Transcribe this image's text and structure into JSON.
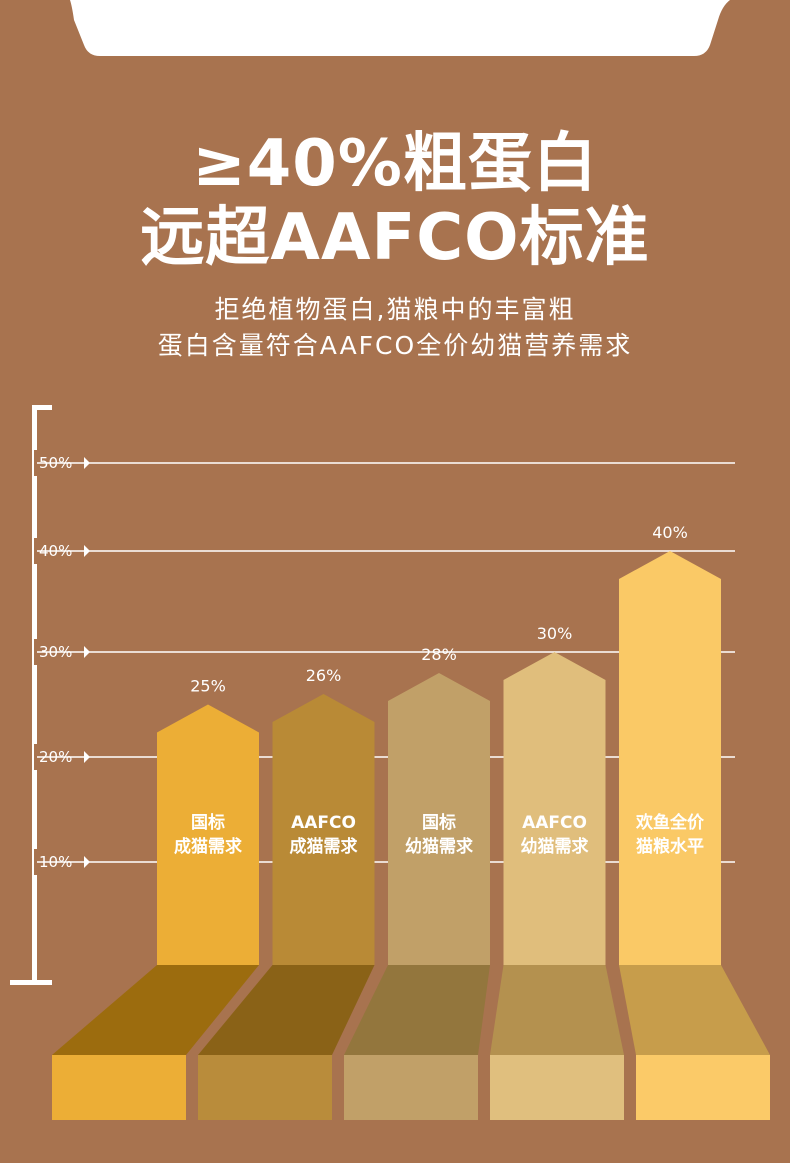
{
  "header": {
    "title_line1": "≥40%粗蛋白",
    "title_line2": "远超AAFCO标准",
    "subtitle_line1": "拒绝植物蛋白,猫粮中的丰富粗",
    "subtitle_line2": "蛋白含量符合AAFCO全价幼猫营养需求"
  },
  "colors": {
    "background": "#a8734f",
    "gridline": "#ffffff"
  },
  "chart_data": {
    "type": "bar",
    "y_ticks": [
      "10%",
      "20%",
      "30%",
      "40%",
      "50%"
    ],
    "ylim": [
      0,
      50
    ],
    "grid": true,
    "bars": [
      {
        "label_lines": [
          "国标",
          "成猫需求"
        ],
        "value": 25,
        "value_label": "25%",
        "color": "#ecae36",
        "side_color": "#9c6c0e",
        "front_color": "#ecae36"
      },
      {
        "label_lines": [
          "AAFCO",
          "成猫需求"
        ],
        "value": 26,
        "value_label": "26%",
        "color": "#b98a36",
        "side_color": "#8a6217",
        "front_color": "#b98c3b"
      },
      {
        "label_lines": [
          "国标",
          "幼猫需求"
        ],
        "value": 28,
        "value_label": "28%",
        "color": "#c1a068",
        "side_color": "#93763d",
        "front_color": "#c1a068"
      },
      {
        "label_lines": [
          "AAFCO",
          "幼猫需求"
        ],
        "value": 30,
        "value_label": "30%",
        "color": "#e0be7c",
        "side_color": "#b4914f",
        "front_color": "#e0bf7e"
      },
      {
        "label_lines": [
          "欢鱼全价",
          "猫粮水平"
        ],
        "value": 40,
        "value_label": "40%",
        "color": "#fac966",
        "side_color": "#c79d4b",
        "front_color": "#fbca68"
      }
    ]
  }
}
